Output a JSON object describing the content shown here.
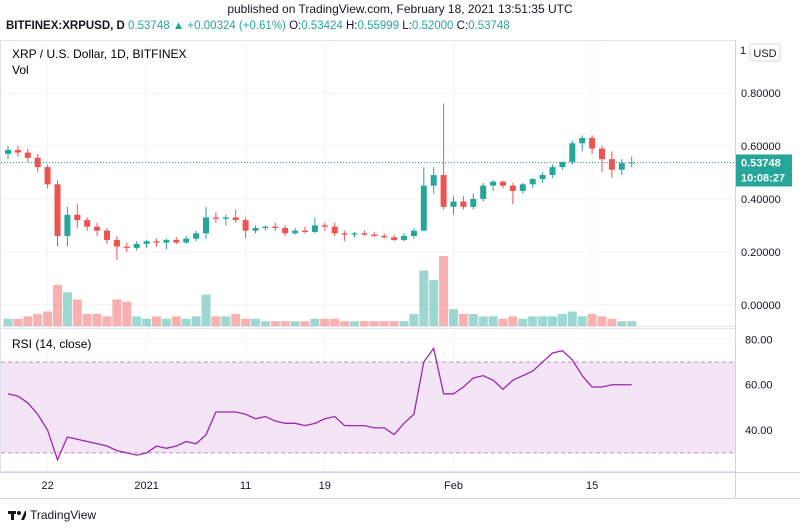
{
  "header": {
    "published": "published on TradingView.com, February 18, 2021 13:51:35 UTC",
    "symbol": "BITFINEX:XRPUSD, D",
    "last": "0.53748",
    "change": "▲ +0.00324 (+0.61%)",
    "open_label": "O:",
    "open": "0.53424",
    "high_label": "H:",
    "high": "0.55999",
    "low_label": "L:",
    "low": "0.52000",
    "close_label": "C:",
    "close": "0.53748"
  },
  "legend": {
    "title": "XRP / U.S. Dollar, 1D, BITFINEX",
    "vol": "Vol",
    "rsi": "RSI (14, close)"
  },
  "price_axis": {
    "currency": "USD",
    "ticks": [
      "0.80000",
      "0.60000",
      "0.40000",
      "0.20000",
      "0.00000"
    ],
    "top_tick": "1",
    "last_price_label": "0.53748",
    "countdown": "10:08:27"
  },
  "rsi_axis": {
    "ticks": [
      "80.00",
      "60.00",
      "40.00"
    ]
  },
  "time_axis": {
    "labels": [
      "22",
      "2021",
      "11",
      "19",
      "Feb",
      "15"
    ]
  },
  "footer": {
    "brand": "TradingView"
  },
  "colors": {
    "up": "#26a69a",
    "down": "#ef5350",
    "rsi_line": "#9c27b0",
    "rsi_band": "#f3e5f5"
  },
  "chart_data": {
    "type": "candlestick",
    "symbol": "XRPUSD",
    "candles": [
      {
        "o": 0.57,
        "h": 0.6,
        "l": 0.55,
        "c": 0.585
      },
      {
        "o": 0.585,
        "h": 0.6,
        "l": 0.56,
        "c": 0.575
      },
      {
        "o": 0.575,
        "h": 0.59,
        "l": 0.54,
        "c": 0.555
      },
      {
        "o": 0.555,
        "h": 0.57,
        "l": 0.5,
        "c": 0.52
      },
      {
        "o": 0.52,
        "h": 0.53,
        "l": 0.44,
        "c": 0.455
      },
      {
        "o": 0.455,
        "h": 0.47,
        "l": 0.22,
        "c": 0.26
      },
      {
        "o": 0.26,
        "h": 0.37,
        "l": 0.22,
        "c": 0.34
      },
      {
        "o": 0.34,
        "h": 0.38,
        "l": 0.29,
        "c": 0.32
      },
      {
        "o": 0.32,
        "h": 0.33,
        "l": 0.28,
        "c": 0.295
      },
      {
        "o": 0.295,
        "h": 0.31,
        "l": 0.26,
        "c": 0.28
      },
      {
        "o": 0.28,
        "h": 0.29,
        "l": 0.23,
        "c": 0.245
      },
      {
        "o": 0.245,
        "h": 0.26,
        "l": 0.17,
        "c": 0.22
      },
      {
        "o": 0.22,
        "h": 0.235,
        "l": 0.2,
        "c": 0.215
      },
      {
        "o": 0.215,
        "h": 0.24,
        "l": 0.205,
        "c": 0.23
      },
      {
        "o": 0.23,
        "h": 0.245,
        "l": 0.215,
        "c": 0.24
      },
      {
        "o": 0.24,
        "h": 0.25,
        "l": 0.22,
        "c": 0.235
      },
      {
        "o": 0.235,
        "h": 0.25,
        "l": 0.21,
        "c": 0.245
      },
      {
        "o": 0.245,
        "h": 0.255,
        "l": 0.23,
        "c": 0.235
      },
      {
        "o": 0.235,
        "h": 0.26,
        "l": 0.23,
        "c": 0.25
      },
      {
        "o": 0.25,
        "h": 0.28,
        "l": 0.24,
        "c": 0.27
      },
      {
        "o": 0.27,
        "h": 0.37,
        "l": 0.25,
        "c": 0.33
      },
      {
        "o": 0.33,
        "h": 0.35,
        "l": 0.31,
        "c": 0.325
      },
      {
        "o": 0.325,
        "h": 0.34,
        "l": 0.3,
        "c": 0.33
      },
      {
        "o": 0.33,
        "h": 0.36,
        "l": 0.31,
        "c": 0.32
      },
      {
        "o": 0.32,
        "h": 0.33,
        "l": 0.25,
        "c": 0.28
      },
      {
        "o": 0.28,
        "h": 0.3,
        "l": 0.27,
        "c": 0.29
      },
      {
        "o": 0.29,
        "h": 0.3,
        "l": 0.28,
        "c": 0.295
      },
      {
        "o": 0.295,
        "h": 0.31,
        "l": 0.28,
        "c": 0.29
      },
      {
        "o": 0.29,
        "h": 0.3,
        "l": 0.26,
        "c": 0.27
      },
      {
        "o": 0.27,
        "h": 0.29,
        "l": 0.265,
        "c": 0.28
      },
      {
        "o": 0.28,
        "h": 0.295,
        "l": 0.27,
        "c": 0.275
      },
      {
        "o": 0.275,
        "h": 0.33,
        "l": 0.27,
        "c": 0.3
      },
      {
        "o": 0.3,
        "h": 0.31,
        "l": 0.28,
        "c": 0.295
      },
      {
        "o": 0.295,
        "h": 0.31,
        "l": 0.26,
        "c": 0.27
      },
      {
        "o": 0.27,
        "h": 0.28,
        "l": 0.24,
        "c": 0.265
      },
      {
        "o": 0.265,
        "h": 0.275,
        "l": 0.255,
        "c": 0.27
      },
      {
        "o": 0.27,
        "h": 0.28,
        "l": 0.26,
        "c": 0.265
      },
      {
        "o": 0.265,
        "h": 0.275,
        "l": 0.255,
        "c": 0.26
      },
      {
        "o": 0.26,
        "h": 0.27,
        "l": 0.25,
        "c": 0.255
      },
      {
        "o": 0.255,
        "h": 0.265,
        "l": 0.24,
        "c": 0.245
      },
      {
        "o": 0.245,
        "h": 0.27,
        "l": 0.24,
        "c": 0.26
      },
      {
        "o": 0.26,
        "h": 0.29,
        "l": 0.25,
        "c": 0.28
      },
      {
        "o": 0.28,
        "h": 0.52,
        "l": 0.28,
        "c": 0.45
      },
      {
        "o": 0.45,
        "h": 0.52,
        "l": 0.42,
        "c": 0.49
      },
      {
        "o": 0.49,
        "h": 0.76,
        "l": 0.36,
        "c": 0.37
      },
      {
        "o": 0.37,
        "h": 0.41,
        "l": 0.34,
        "c": 0.39
      },
      {
        "o": 0.39,
        "h": 0.41,
        "l": 0.36,
        "c": 0.37
      },
      {
        "o": 0.37,
        "h": 0.42,
        "l": 0.36,
        "c": 0.4
      },
      {
        "o": 0.4,
        "h": 0.46,
        "l": 0.39,
        "c": 0.45
      },
      {
        "o": 0.45,
        "h": 0.47,
        "l": 0.43,
        "c": 0.465
      },
      {
        "o": 0.465,
        "h": 0.47,
        "l": 0.44,
        "c": 0.45
      },
      {
        "o": 0.45,
        "h": 0.46,
        "l": 0.38,
        "c": 0.43
      },
      {
        "o": 0.43,
        "h": 0.46,
        "l": 0.42,
        "c": 0.455
      },
      {
        "o": 0.455,
        "h": 0.48,
        "l": 0.44,
        "c": 0.475
      },
      {
        "o": 0.475,
        "h": 0.5,
        "l": 0.46,
        "c": 0.49
      },
      {
        "o": 0.49,
        "h": 0.53,
        "l": 0.48,
        "c": 0.52
      },
      {
        "o": 0.52,
        "h": 0.54,
        "l": 0.51,
        "c": 0.54
      },
      {
        "o": 0.54,
        "h": 0.62,
        "l": 0.53,
        "c": 0.61
      },
      {
        "o": 0.61,
        "h": 0.64,
        "l": 0.58,
        "c": 0.63
      },
      {
        "o": 0.63,
        "h": 0.64,
        "l": 0.57,
        "c": 0.59
      },
      {
        "o": 0.59,
        "h": 0.6,
        "l": 0.5,
        "c": 0.55
      },
      {
        "o": 0.55,
        "h": 0.58,
        "l": 0.48,
        "c": 0.51
      },
      {
        "o": 0.51,
        "h": 0.55,
        "l": 0.49,
        "c": 0.535
      },
      {
        "o": 0.534,
        "h": 0.56,
        "l": 0.52,
        "c": 0.5375
      }
    ],
    "volume": [
      0.03,
      0.03,
      0.04,
      0.05,
      0.06,
      0.17,
      0.14,
      0.11,
      0.05,
      0.05,
      0.04,
      0.11,
      0.1,
      0.04,
      0.03,
      0.04,
      0.03,
      0.04,
      0.03,
      0.04,
      0.13,
      0.04,
      0.04,
      0.05,
      0.03,
      0.03,
      0.02,
      0.02,
      0.02,
      0.02,
      0.02,
      0.03,
      0.03,
      0.03,
      0.02,
      0.02,
      0.02,
      0.02,
      0.02,
      0.02,
      0.02,
      0.05,
      0.23,
      0.19,
      0.29,
      0.07,
      0.05,
      0.05,
      0.04,
      0.04,
      0.03,
      0.04,
      0.03,
      0.04,
      0.04,
      0.04,
      0.05,
      0.06,
      0.04,
      0.05,
      0.04,
      0.03,
      0.02,
      0.02
    ],
    "rsi": [
      56,
      55,
      52,
      47,
      40,
      27,
      37,
      36,
      35,
      34,
      33,
      31,
      30,
      29,
      30,
      33,
      32,
      33,
      35,
      34,
      38,
      48,
      48,
      48,
      47,
      45,
      46,
      44,
      43,
      43,
      42,
      43,
      45,
      46,
      42,
      42,
      42,
      41,
      41,
      38,
      43,
      47,
      70,
      76,
      56,
      56,
      59,
      63,
      64,
      62,
      58,
      62,
      64,
      66,
      70,
      74,
      75,
      71,
      64,
      59,
      59,
      60,
      60,
      60
    ],
    "price_range": [
      -0.08,
      1.0
    ],
    "rsi_range": [
      22,
      85
    ],
    "rsi_bands": [
      70,
      30
    ]
  }
}
